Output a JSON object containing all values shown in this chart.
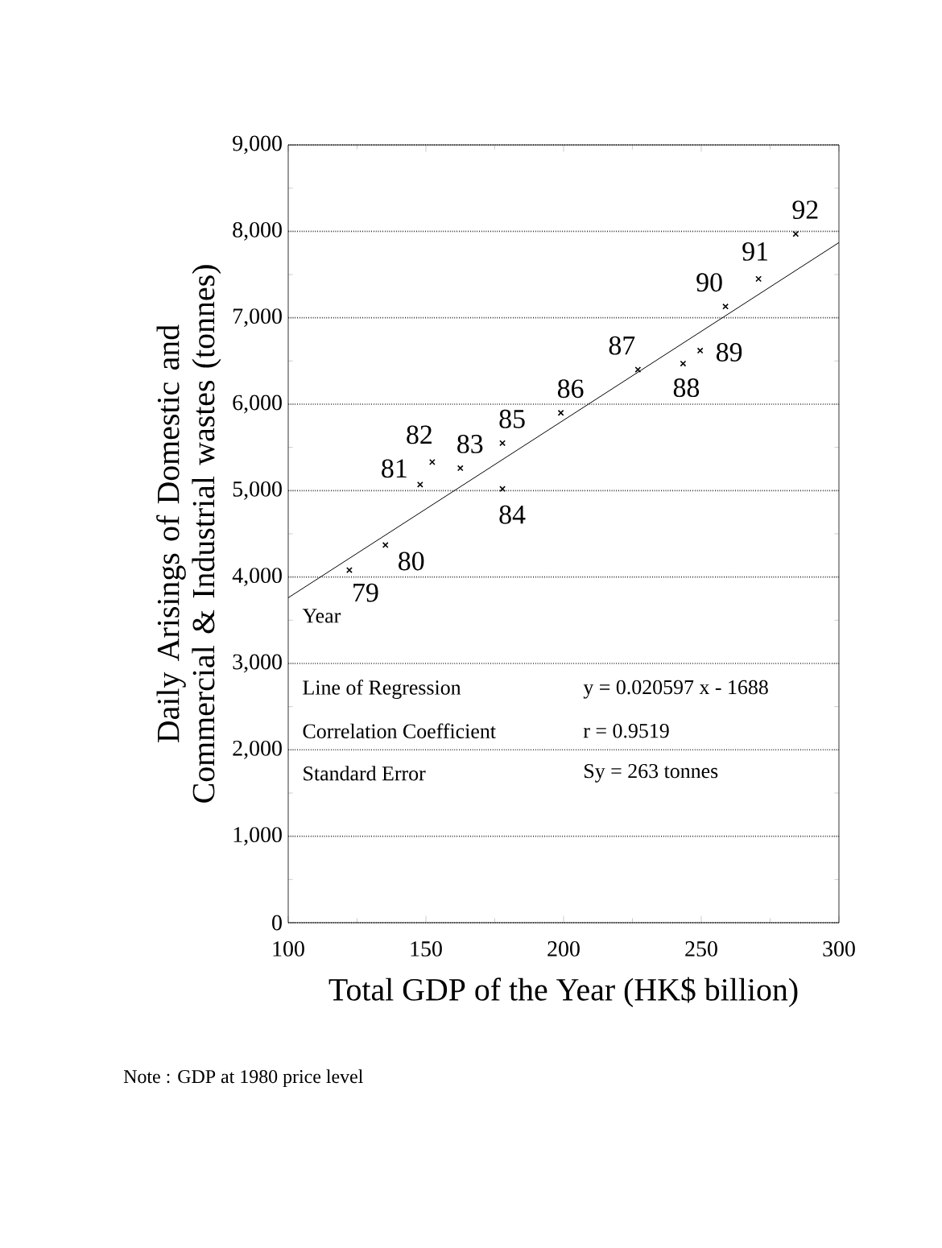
{
  "chart_data": {
    "type": "scatter",
    "xlabel": "Total GDP of the Year (HK$ billion)",
    "ylabel": "Daily Arisings of Domestic and Commercial & Industrial wastes (tonnes)",
    "xlim": [
      100,
      300
    ],
    "xticks": [
      100,
      150,
      200,
      250,
      300
    ],
    "ylim": [
      0,
      9000
    ],
    "yticks": [
      0,
      {
        "value": 1000,
        "label": "1,000"
      },
      {
        "value": 2000,
        "label": "2,000"
      },
      {
        "value": 3000,
        "label": "3,000"
      },
      {
        "value": 4000,
        "label": "4,000"
      },
      {
        "value": 5000,
        "label": "5,000"
      },
      {
        "value": 6000,
        "label": "6,000"
      },
      {
        "value": 7000,
        "label": "7,000"
      },
      {
        "value": 8000,
        "label": "8,000"
      },
      {
        "value": 9000,
        "label": "9,000"
      }
    ],
    "grid": "y",
    "series": [
      {
        "marker": "cross",
        "color": "#000000",
        "x": [
          122.2,
          135.3,
          147.9,
          152.3,
          162.5,
          177.8,
          177.8,
          199,
          227,
          243.4,
          249.6,
          258.8,
          270.8,
          284.3
        ],
        "values": [
          4080,
          4370,
          5070,
          5330,
          5260,
          5020,
          5550,
          5900,
          6400,
          6470,
          6620,
          7130,
          7450,
          7970
        ]
      },
      {
        "type": "line",
        "marker": "none",
        "color": "#000000",
        "x": [
          100,
          300
        ],
        "values": [
          3760,
          7870
        ]
      }
    ],
    "annotations": [
      {
        "text": "79",
        "x": 122.2,
        "y": 4080
      },
      {
        "text": "80",
        "x": 135.3,
        "y": 4370
      },
      {
        "text": "81",
        "x": 147.9,
        "y": 5070
      },
      {
        "text": "82",
        "x": 152.3,
        "y": 5330
      },
      {
        "text": "83",
        "x": 162.5,
        "y": 5260
      },
      {
        "text": "84",
        "x": 177.8,
        "y": 5020
      },
      {
        "text": "85",
        "x": 177.8,
        "y": 5550
      },
      {
        "text": "86",
        "x": 199,
        "y": 5900
      },
      {
        "text": "87",
        "x": 227,
        "y": 6400
      },
      {
        "text": "88",
        "x": 243.4,
        "y": 6470
      },
      {
        "text": "89",
        "x": 249.6,
        "y": 6620
      },
      {
        "text": "90",
        "x": 258.8,
        "y": 7130
      },
      {
        "text": "91",
        "x": 270.8,
        "y": 7450
      },
      {
        "text": "92",
        "x": 284.3,
        "y": 7970
      },
      "Year",
      "Line of Regression",
      "Correlation Coefficient",
      "Standard Error",
      "y = 0.020597 x - 1688",
      "r = 0.9519",
      "Sy = 263 tonnes",
      "Note : GDP at 1980 price level"
    ]
  }
}
